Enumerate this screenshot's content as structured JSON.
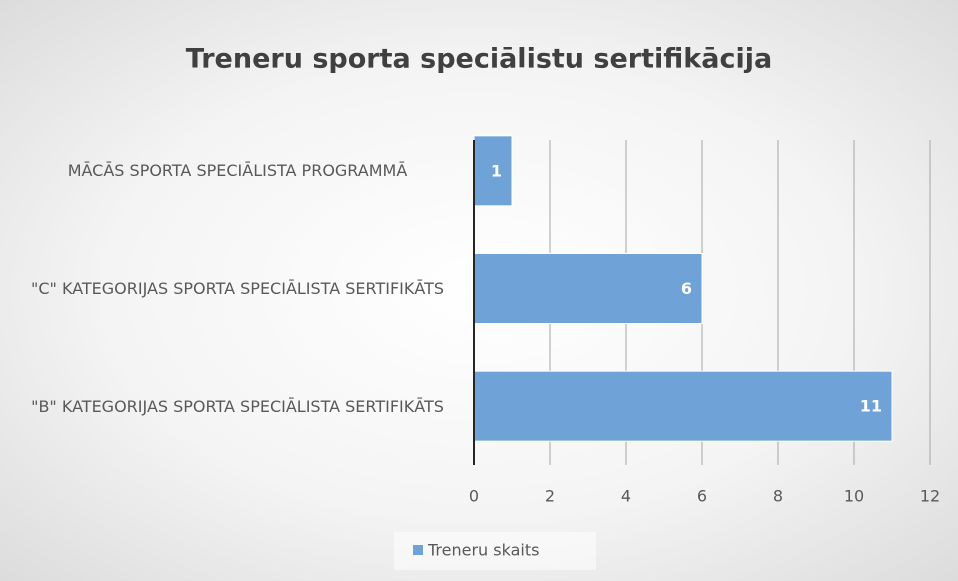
{
  "chart_data": {
    "type": "bar",
    "orientation": "horizontal",
    "title": "Treneru sporta speciālistu sertifikācija",
    "categories": [
      "MĀCĀS SPORTA SPECIĀLISTA PROGRAMMĀ",
      "\"C\" KATEGORIJAS SPORTA SPECIĀLISTA SERTIFIKĀTS",
      "\"B\" KATEGORIJAS SPORTA SPECIĀLISTA SERTIFIKĀTS"
    ],
    "series": [
      {
        "name": "Treneru skaits",
        "color": "#6fa3d8",
        "values": [
          1,
          6,
          11
        ]
      }
    ],
    "xlim": [
      0,
      12
    ],
    "xticks": [
      0,
      2,
      4,
      6,
      8,
      10,
      12
    ],
    "grid": true,
    "legend": "bottom"
  }
}
